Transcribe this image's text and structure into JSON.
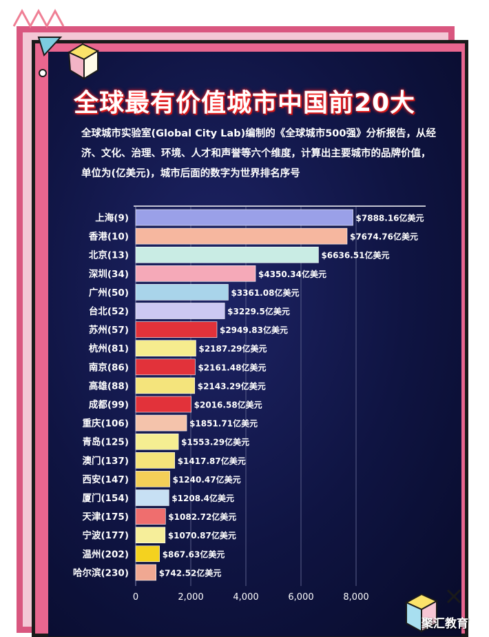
{
  "title": "全球最有价值城市中国前20大",
  "subtitle": "全球城市实验室(Global City Lab)编制的《全球城市500强》分析报告，从经济、文化、治理、环境、人才和声誉等六个维度，计算出主要城市的品牌价值，单位为(亿美元)，城市后面的数字为世界排名序号",
  "watermark": "聚汇教育",
  "colors": {
    "background": "#111548",
    "frame_pink": "#d9567f",
    "title_glow": "#ff2020"
  },
  "icons": [
    "zigzag-icon",
    "triangle-icon",
    "cube-icon",
    "circle-icon",
    "x-icon"
  ],
  "chart_data": {
    "type": "bar",
    "orientation": "horizontal",
    "categories": [
      "上海(9)",
      "香港(10)",
      "北京(13)",
      "深圳(34)",
      "广州(50)",
      "台北(52)",
      "苏州(57)",
      "杭州(81)",
      "南京(86)",
      "高雄(88)",
      "成都(99)",
      "重庆(106)",
      "青岛(125)",
      "澳门(137)",
      "西安(147)",
      "厦门(154)",
      "天津(175)",
      "宁波(177)",
      "温州(202)",
      "哈尔滨(230)"
    ],
    "values": [
      7888.16,
      7674.76,
      6636.51,
      4350.34,
      3361.08,
      3229.5,
      2949.83,
      2187.29,
      2161.48,
      2143.29,
      2016.58,
      1851.71,
      1553.29,
      1417.87,
      1240.47,
      1208.4,
      1082.72,
      1070.87,
      867.63,
      742.52
    ],
    "value_labels": [
      "$7888.16亿美元",
      "$7674.76亿美元",
      "$6636.51亿美元",
      "$4350.34亿美元",
      "$3361.08亿美元",
      "$3229.5亿美元",
      "$2949.83亿美元",
      "$2187.29亿美元",
      "$2161.48亿美元",
      "$2143.29亿美元",
      "$2016.58亿美元",
      "$1851.71亿美元",
      "$1553.29亿美元",
      "$1417.87亿美元",
      "$1240.47亿美元",
      "$1208.4亿美元",
      "$1082.72亿美元",
      "$1070.87亿美元",
      "$867.63亿美元",
      "$742.52亿美元"
    ],
    "bar_colors": [
      "#9aa0e8",
      "#f6b79f",
      "#c9ece4",
      "#f5a9b8",
      "#a9d4ea",
      "#ccc8f2",
      "#e2323a",
      "#f6ec8e",
      "#e2323a",
      "#f4e47c",
      "#e2323a",
      "#f4c3ab",
      "#f5ee92",
      "#f5e37a",
      "#f4cf58",
      "#c7e0f4",
      "#ef6e6e",
      "#f6ee9a",
      "#f4d21f",
      "#f0a892"
    ],
    "xticks": [
      "0",
      "2,000",
      "4,000",
      "6,000",
      "8,000"
    ],
    "xlim": [
      0,
      8500
    ],
    "grid": true,
    "xlabel": "",
    "ylabel": ""
  }
}
